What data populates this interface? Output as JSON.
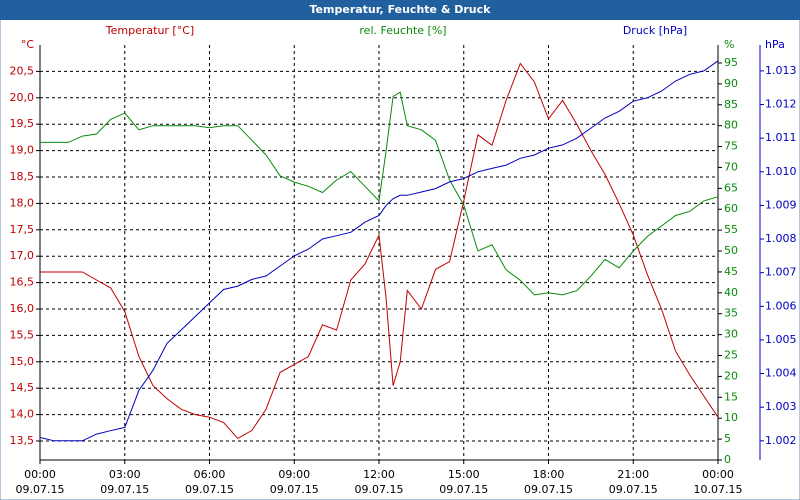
{
  "chart_data": {
    "type": "line",
    "title": "Temperatur, Feuchte & Druck",
    "x": [
      0,
      0.5,
      1,
      1.5,
      2,
      2.5,
      3,
      3.5,
      4,
      4.5,
      5,
      5.5,
      6,
      6.5,
      7,
      7.5,
      8,
      8.5,
      9,
      9.5,
      10,
      10.5,
      11,
      11.5,
      12,
      12.25,
      12.5,
      12.75,
      13,
      13.5,
      14,
      14.5,
      15,
      15.5,
      16,
      16.5,
      17,
      17.5,
      18,
      18.5,
      19,
      19.5,
      20,
      20.5,
      21,
      21.5,
      22,
      22.5,
      23,
      23.5,
      24
    ],
    "xlim": [
      0,
      24
    ],
    "xticks": [
      {
        "value": 0,
        "label": "00:00",
        "date": "09.07.15"
      },
      {
        "value": 3,
        "label": "03:00",
        "date": "09.07.15"
      },
      {
        "value": 6,
        "label": "06:00",
        "date": "09.07.15"
      },
      {
        "value": 9,
        "label": "09:00",
        "date": "09.07.15"
      },
      {
        "value": 12,
        "label": "12:00",
        "date": "09.07.15"
      },
      {
        "value": 15,
        "label": "15:00",
        "date": "09.07.15"
      },
      {
        "value": 18,
        "label": "18:00",
        "date": "09.07.15"
      },
      {
        "value": 21,
        "label": "21:00",
        "date": "09.07.15"
      },
      {
        "value": 24,
        "label": "00:00",
        "date": "10.07.15"
      }
    ],
    "ylabel": "°C",
    "ylim": [
      13.14,
      21.0
    ],
    "yticks": [
      {
        "value": 13.5,
        "label": "13,5"
      },
      {
        "value": 14,
        "label": "14,0"
      },
      {
        "value": 14.5,
        "label": "14,5"
      },
      {
        "value": 15,
        "label": "15,0"
      },
      {
        "value": 15.5,
        "label": "15,5"
      },
      {
        "value": 16,
        "label": "16,0"
      },
      {
        "value": 16.5,
        "label": "16,5"
      },
      {
        "value": 17,
        "label": "17,0"
      },
      {
        "value": 17.5,
        "label": "17,5"
      },
      {
        "value": 18,
        "label": "18,0"
      },
      {
        "value": 18.5,
        "label": "18,5"
      },
      {
        "value": 19,
        "label": "19,0"
      },
      {
        "value": 19.5,
        "label": "19,5"
      },
      {
        "value": 20,
        "label": "20,0"
      },
      {
        "value": 20.5,
        "label": "20,5"
      }
    ],
    "y2label": "%",
    "y2lim": [
      0,
      99.3
    ],
    "y2ticks": [
      0,
      5,
      10,
      15,
      20,
      25,
      30,
      35,
      40,
      45,
      50,
      55,
      60,
      65,
      70,
      75,
      80,
      85,
      90,
      95
    ],
    "y3label": "hPa",
    "y3lim": [
      1.00143,
      1.01377
    ],
    "y3ticks": [
      1.002,
      1.003,
      1.004,
      1.005,
      1.006,
      1.007,
      1.008,
      1.009,
      {
        "value": 1.01,
        "label": "1.010"
      },
      1.011,
      1.012,
      1.013
    ],
    "grid": true,
    "series": [
      {
        "name": "Temperatur [°C]",
        "color": "#c00000",
        "axis": "y",
        "values": [
          16.7,
          16.7,
          16.7,
          16.7,
          16.55,
          16.4,
          15.95,
          15.1,
          14.55,
          14.3,
          14.1,
          14.0,
          13.95,
          13.85,
          13.55,
          13.7,
          14.1,
          14.8,
          14.95,
          15.1,
          15.7,
          15.6,
          16.55,
          16.85,
          17.4,
          16.2,
          14.55,
          15.0,
          16.35,
          16.0,
          16.75,
          16.9,
          18.05,
          19.3,
          19.1,
          19.95,
          20.65,
          20.3,
          19.6,
          19.95,
          19.5,
          19.0,
          18.55,
          18.0,
          17.4,
          16.65,
          16.0,
          15.2,
          14.75,
          14.35,
          13.95
        ]
      },
      {
        "name": "rel. Feuchte [%]",
        "color": "#0a8a0a",
        "axis": "y2",
        "values": [
          76,
          76,
          76,
          77.5,
          78,
          81.5,
          83,
          79,
          80,
          80,
          80,
          80,
          79.5,
          80,
          80,
          76.5,
          73,
          68,
          66.5,
          65.5,
          64,
          67,
          69,
          65.5,
          62,
          74,
          87,
          88,
          80,
          79,
          76.5,
          67,
          61,
          50,
          51.5,
          45.5,
          43,
          39.5,
          40,
          39.5,
          40.5,
          44,
          48,
          46,
          50,
          53.5,
          56,
          58.5,
          59.5,
          62,
          63
        ]
      },
      {
        "name": "Druck [hPa]",
        "color": "#0000c0",
        "axis": "y3",
        "values": [
          1.0021,
          1.002,
          1.002,
          1.002,
          1.0022,
          1.0023,
          1.0024,
          1.0035,
          1.0041,
          1.0049,
          1.0053,
          1.0057,
          1.0061,
          1.0065,
          1.0066,
          1.0068,
          1.0069,
          1.0072,
          1.0075,
          1.0077,
          1.008,
          1.0081,
          1.0082,
          1.0085,
          1.0087,
          1.009,
          1.0092,
          1.0093,
          1.0093,
          1.0094,
          1.0095,
          1.0097,
          1.0098,
          1.01,
          1.0101,
          1.0102,
          1.0104,
          1.0105,
          1.0107,
          1.0108,
          1.011,
          1.0113,
          1.0116,
          1.0118,
          1.0121,
          1.0122,
          1.0124,
          1.0127,
          1.0129,
          1.013,
          1.0133
        ]
      }
    ]
  }
}
